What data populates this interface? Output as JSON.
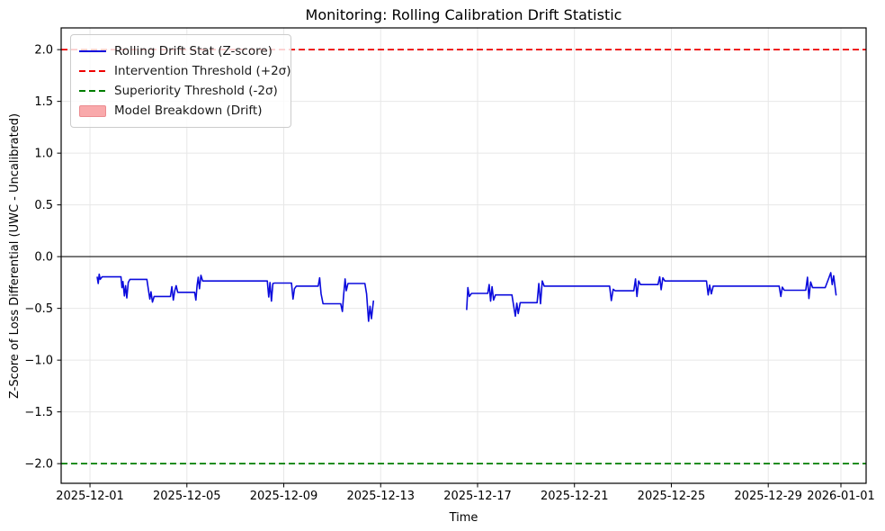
{
  "chart_data": {
    "type": "line",
    "title": "Monitoring: Rolling Calibration Drift Statistic",
    "xlabel": "Time",
    "ylabel": "Z-Score of Loss Differential (UWC - Uncalibrated)",
    "x_epoch": "days since 2025-12-01",
    "xlim_days": [
      -1.19,
      32.04
    ],
    "ylim": [
      -2.19,
      2.21
    ],
    "grid": true,
    "legend_position": "upper left",
    "colors": {
      "grid": "#e7e7e7",
      "frame": "#000000",
      "background": "#ffffff",
      "tick_text": "#000000"
    },
    "x_ticks": [
      {
        "day": 0,
        "label": "2025-12-01"
      },
      {
        "day": 4,
        "label": "2025-12-05"
      },
      {
        "day": 8,
        "label": "2025-12-09"
      },
      {
        "day": 12,
        "label": "2025-12-13"
      },
      {
        "day": 16,
        "label": "2025-12-17"
      },
      {
        "day": 20,
        "label": "2025-12-21"
      },
      {
        "day": 24,
        "label": "2025-12-25"
      },
      {
        "day": 28,
        "label": "2025-12-29"
      },
      {
        "day": 31,
        "label": "2026-01-01"
      }
    ],
    "y_ticks": [
      {
        "value": 2.0,
        "label": "2.0"
      },
      {
        "value": 1.5,
        "label": "1.5"
      },
      {
        "value": 1.0,
        "label": "1.0"
      },
      {
        "value": 0.5,
        "label": "0.5"
      },
      {
        "value": 0.0,
        "label": "0.0"
      },
      {
        "value": -0.5,
        "label": "−0.5"
      },
      {
        "value": -1.0,
        "label": "−1.0"
      },
      {
        "value": -1.5,
        "label": "−1.5"
      },
      {
        "value": -2.0,
        "label": "−2.0"
      }
    ],
    "thresholds": [
      {
        "name": "intervention",
        "label": "Intervention Threshold (+2σ)",
        "y": 2.0,
        "color": "#ee0000",
        "dash": [
          7,
          4
        ],
        "width": 1.8
      },
      {
        "name": "superiority",
        "label": "Superiority Threshold (-2σ)",
        "y": -2.0,
        "color": "#007d00",
        "dash": [
          7,
          4
        ],
        "width": 1.8
      }
    ],
    "zero_line": {
      "y": 0.0,
      "color": "#2b2b2b",
      "width": 1.2
    },
    "series": [
      {
        "name": "Rolling Drift Stat (Z-score)",
        "color": "#0b0bdd",
        "line_width": 1.6,
        "segments": [
          [
            [
              0.3,
              -0.2
            ],
            [
              0.34,
              -0.26
            ],
            [
              0.38,
              -0.17
            ],
            [
              0.42,
              -0.22
            ],
            [
              0.5,
              -0.195
            ],
            [
              1.28,
              -0.195
            ],
            [
              1.32,
              -0.3
            ],
            [
              1.36,
              -0.24
            ],
            [
              1.42,
              -0.38
            ],
            [
              1.47,
              -0.28
            ],
            [
              1.52,
              -0.4
            ],
            [
              1.58,
              -0.25
            ],
            [
              1.65,
              -0.22
            ],
            [
              2.35,
              -0.22
            ],
            [
              2.42,
              -0.33
            ],
            [
              2.47,
              -0.41
            ],
            [
              2.52,
              -0.34
            ],
            [
              2.58,
              -0.44
            ],
            [
              2.65,
              -0.385
            ],
            [
              3.32,
              -0.385
            ],
            [
              3.38,
              -0.29
            ],
            [
              3.44,
              -0.42
            ],
            [
              3.5,
              -0.33
            ],
            [
              3.56,
              -0.28
            ],
            [
              3.62,
              -0.345
            ],
            [
              4.32,
              -0.345
            ],
            [
              4.37,
              -0.42
            ],
            [
              4.42,
              -0.28
            ],
            [
              4.47,
              -0.2
            ],
            [
              4.52,
              -0.31
            ],
            [
              4.58,
              -0.18
            ],
            [
              4.65,
              -0.235
            ],
            [
              7.32,
              -0.235
            ],
            [
              7.38,
              -0.39
            ],
            [
              7.43,
              -0.25
            ],
            [
              7.49,
              -0.43
            ],
            [
              7.55,
              -0.26
            ],
            [
              7.62,
              -0.255
            ],
            [
              8.32,
              -0.255
            ],
            [
              8.38,
              -0.41
            ],
            [
              8.44,
              -0.31
            ],
            [
              8.52,
              -0.285
            ],
            [
              9.42,
              -0.285
            ],
            [
              9.48,
              -0.205
            ],
            [
              9.54,
              -0.36
            ],
            [
              9.62,
              -0.455
            ],
            [
              10.35,
              -0.455
            ],
            [
              10.42,
              -0.53
            ],
            [
              10.47,
              -0.38
            ],
            [
              10.53,
              -0.215
            ],
            [
              10.58,
              -0.33
            ],
            [
              10.65,
              -0.26
            ],
            [
              11.35,
              -0.26
            ],
            [
              11.42,
              -0.36
            ],
            [
              11.5,
              -0.625
            ],
            [
              11.56,
              -0.48
            ],
            [
              11.62,
              -0.6
            ],
            [
              11.7,
              -0.43
            ]
          ],
          [
            [
              15.55,
              -0.51
            ],
            [
              15.6,
              -0.3
            ],
            [
              15.66,
              -0.385
            ],
            [
              15.75,
              -0.355
            ],
            [
              16.42,
              -0.355
            ],
            [
              16.48,
              -0.27
            ],
            [
              16.54,
              -0.43
            ],
            [
              16.6,
              -0.29
            ],
            [
              16.66,
              -0.42
            ],
            [
              16.74,
              -0.37
            ],
            [
              17.42,
              -0.37
            ],
            [
              17.5,
              -0.49
            ],
            [
              17.56,
              -0.575
            ],
            [
              17.62,
              -0.45
            ],
            [
              17.68,
              -0.55
            ],
            [
              17.76,
              -0.445
            ],
            [
              18.46,
              -0.445
            ],
            [
              18.53,
              -0.26
            ],
            [
              18.6,
              -0.455
            ],
            [
              18.67,
              -0.235
            ],
            [
              18.75,
              -0.285
            ],
            [
              21.45,
              -0.285
            ],
            [
              21.52,
              -0.425
            ],
            [
              21.6,
              -0.315
            ],
            [
              21.68,
              -0.33
            ],
            [
              22.45,
              -0.33
            ],
            [
              22.52,
              -0.215
            ],
            [
              22.58,
              -0.385
            ],
            [
              22.65,
              -0.235
            ],
            [
              22.73,
              -0.27
            ],
            [
              23.45,
              -0.27
            ],
            [
              23.52,
              -0.195
            ],
            [
              23.58,
              -0.32
            ],
            [
              23.65,
              -0.205
            ],
            [
              23.73,
              -0.235
            ],
            [
              25.45,
              -0.235
            ],
            [
              25.52,
              -0.37
            ],
            [
              25.58,
              -0.275
            ],
            [
              25.65,
              -0.36
            ],
            [
              25.73,
              -0.285
            ],
            [
              28.45,
              -0.285
            ],
            [
              28.52,
              -0.385
            ],
            [
              28.58,
              -0.295
            ],
            [
              28.66,
              -0.325
            ],
            [
              29.55,
              -0.325
            ],
            [
              29.62,
              -0.2
            ],
            [
              29.68,
              -0.405
            ],
            [
              29.75,
              -0.245
            ],
            [
              29.83,
              -0.3
            ],
            [
              30.35,
              -0.3
            ],
            [
              30.48,
              -0.22
            ],
            [
              30.58,
              -0.155
            ],
            [
              30.64,
              -0.27
            ],
            [
              30.7,
              -0.185
            ],
            [
              30.8,
              -0.37
            ]
          ]
        ]
      }
    ],
    "legend": {
      "items": [
        {
          "label": "Rolling Drift Stat (Z-score)",
          "swatch": "line",
          "color": "#0b0bdd",
          "dash": false
        },
        {
          "label": "Intervention Threshold (+2σ)",
          "swatch": "line",
          "color": "#ee0000",
          "dash": true
        },
        {
          "label": "Superiority Threshold (-2σ)",
          "swatch": "line",
          "color": "#007d00",
          "dash": true
        },
        {
          "label": "Model Breakdown (Drift)",
          "swatch": "patch",
          "color": "#f9a9ab",
          "border": "#ec8b90"
        }
      ]
    }
  }
}
